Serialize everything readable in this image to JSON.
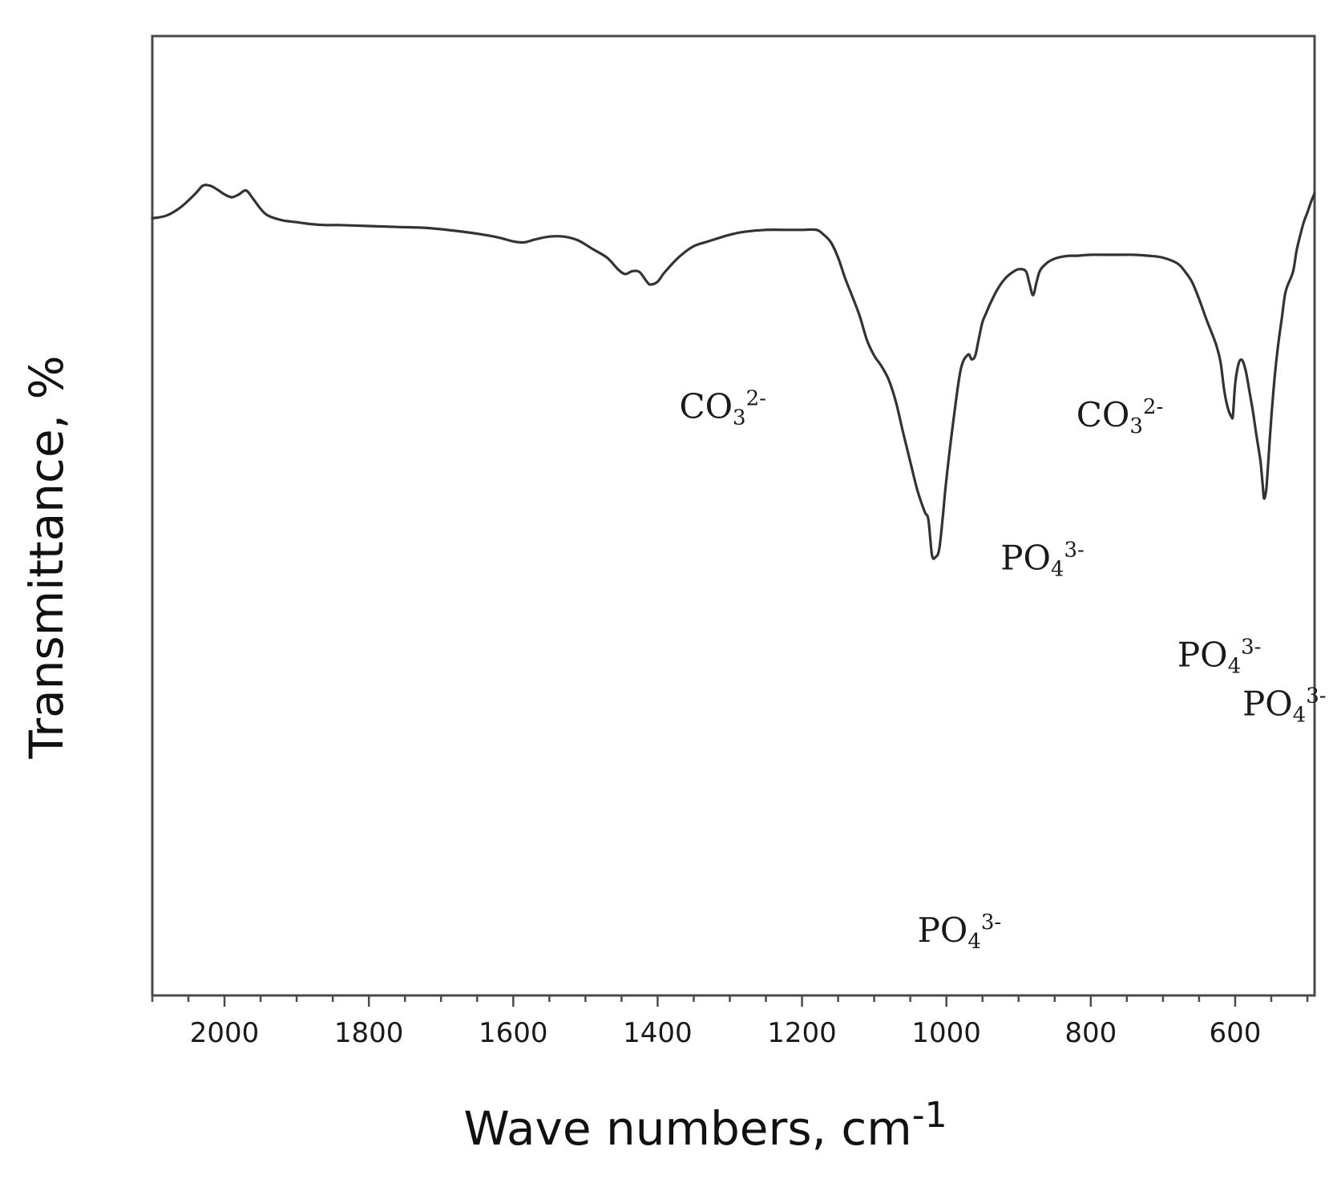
{
  "chart_data": {
    "type": "line",
    "title": "",
    "xlabel": "Wave numbers, cm",
    "xlabel_exponent": "-1",
    "ylabel": "Transmittance, %",
    "xlim": [
      2100,
      490
    ],
    "ylim": [
      0,
      100
    ],
    "x_reversed": true,
    "grid": false,
    "legend": "none",
    "line_color": "#333333",
    "x_ticks": [
      2000,
      1800,
      1600,
      1400,
      1200,
      1000,
      800,
      600
    ],
    "x_tick_labels": [
      "2000",
      "1800",
      "1600",
      "1400",
      "1200",
      "1000",
      "800",
      "600"
    ],
    "series": [
      {
        "x": [
          2100,
          2080,
          2060,
          2040,
          2030,
          2020,
          2010,
          2000,
          1990,
          1980,
          1970,
          1960,
          1950,
          1940,
          1920,
          1900,
          1880,
          1860,
          1840,
          1800,
          1760,
          1720,
          1680,
          1650,
          1620,
          1600,
          1585,
          1570,
          1550,
          1530,
          1510,
          1490,
          1470,
          1455,
          1445,
          1435,
          1425,
          1415,
          1410,
          1400,
          1390,
          1370,
          1350,
          1330,
          1300,
          1280,
          1250,
          1220,
          1200,
          1180,
          1170,
          1160,
          1150,
          1140,
          1130,
          1120,
          1110,
          1100,
          1090,
          1080,
          1070,
          1060,
          1050,
          1040,
          1030,
          1025,
          1020,
          1015,
          1010,
          1005,
          1000,
          990,
          980,
          970,
          965,
          960,
          955,
          950,
          945,
          940,
          930,
          920,
          910,
          900,
          890,
          885,
          880,
          875,
          870,
          860,
          850,
          840,
          830,
          820,
          800,
          780,
          760,
          740,
          720,
          700,
          680,
          670,
          660,
          650,
          640,
          630,
          625,
          620,
          615,
          610,
          605,
          603,
          600,
          595,
          590,
          585,
          580,
          575,
          570,
          565,
          562,
          560,
          557,
          555,
          550,
          545,
          540,
          535,
          530,
          520,
          515,
          510,
          505,
          500,
          495,
          490
        ],
        "y": [
          81.0,
          81.3,
          82.2,
          83.6,
          84.4,
          84.4,
          84.0,
          83.5,
          83.2,
          83.5,
          83.9,
          83.0,
          82.0,
          81.3,
          80.8,
          80.6,
          80.4,
          80.3,
          80.3,
          80.2,
          80.1,
          80.0,
          79.7,
          79.4,
          79.0,
          78.6,
          78.5,
          78.8,
          79.1,
          79.1,
          78.7,
          77.8,
          76.9,
          75.7,
          75.2,
          75.5,
          75.4,
          74.4,
          74.1,
          74.4,
          75.4,
          77.0,
          78.1,
          78.6,
          79.3,
          79.6,
          79.8,
          79.8,
          79.8,
          79.8,
          79.3,
          78.5,
          76.9,
          74.7,
          72.8,
          70.8,
          68.3,
          66.7,
          65.6,
          64.2,
          61.9,
          58.7,
          55.6,
          52.6,
          50.4,
          49.6,
          45.9,
          45.7,
          46.5,
          49.9,
          53.8,
          60.1,
          65.3,
          66.8,
          66.3,
          66.7,
          68.5,
          70.2,
          71.1,
          72.0,
          73.5,
          74.6,
          75.3,
          75.7,
          75.5,
          74.2,
          73.0,
          74.4,
          75.6,
          76.4,
          76.8,
          77.0,
          77.1,
          77.1,
          77.2,
          77.2,
          77.2,
          77.2,
          77.1,
          76.9,
          76.3,
          75.5,
          74.4,
          72.6,
          70.5,
          68.6,
          67.5,
          65.9,
          63.0,
          61.2,
          60.3,
          60.5,
          63.7,
          65.9,
          66.2,
          65.0,
          62.9,
          60.7,
          58.1,
          55.7,
          53.3,
          51.8,
          52.7,
          54.7,
          60.2,
          64.7,
          68.1,
          70.8,
          73.4,
          75.4,
          77.6,
          79.2,
          80.6,
          81.6,
          82.7,
          83.6
        ]
      }
    ],
    "annotations": [
      {
        "base": "CO",
        "sub": "3",
        "sup": "2-",
        "x": 1370,
        "y": 60.2
      },
      {
        "base": "CO",
        "sub": "3",
        "sup": "2-",
        "x": 820,
        "y": 59.3
      },
      {
        "base": "PO",
        "sub": "4",
        "sup": "3-",
        "x": 925,
        "y": 44.4
      },
      {
        "base": "PO",
        "sub": "4",
        "sup": "3-",
        "x": 680,
        "y": 34.3
      },
      {
        "base": "PO",
        "sub": "4",
        "sup": "3-",
        "x": 590,
        "y": 29.2
      },
      {
        "base": "PO",
        "sub": "4",
        "sup": "3-",
        "x": 1040,
        "y": 5.6
      }
    ]
  }
}
